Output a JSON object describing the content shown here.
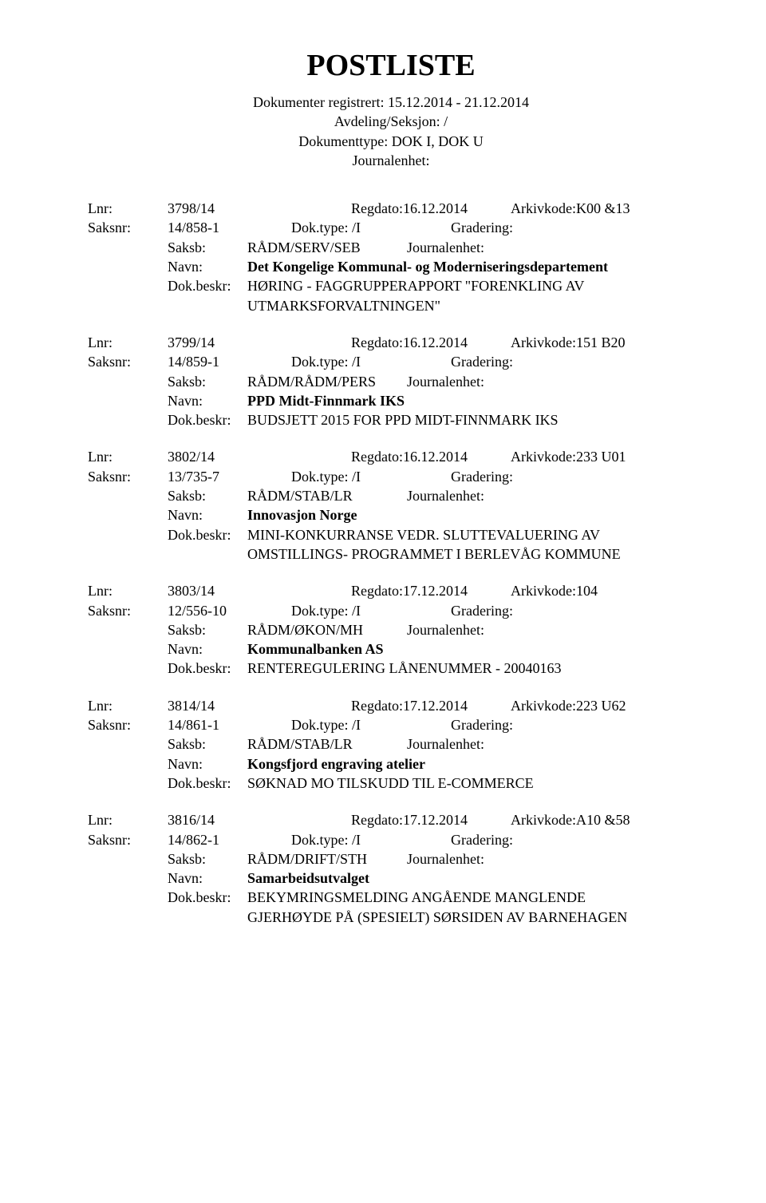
{
  "title": "POSTLISTE",
  "header": {
    "line1": "Dokumenter registrert: 15.12.2014 - 21.12.2014",
    "line2": "Avdeling/Seksjon: /",
    "line3": "Dokumenttype: DOK I, DOK U",
    "line4": "Journalenhet:"
  },
  "labels": {
    "lnr": "Lnr:",
    "regdato": "Regdato:",
    "arkivkode": "Arkivkode:",
    "saksnr": "Saksnr:",
    "doktype": "Dok.type:",
    "gradering": "Gradering:",
    "saksb": "Saksb:",
    "journalenhet": "Journalenhet:",
    "navn": "Navn:",
    "dokbeskr": "Dok.beskr:"
  },
  "entries": [
    {
      "lnr": "3798/14",
      "regdato": "16.12.2014",
      "arkivkode": "K00 &13",
      "saksnr": "14/858-1",
      "doktype": "/I",
      "gradering": "",
      "saksb": "RÅDM/SERV/SEB",
      "journalenhet": "",
      "navn": "Det Kongelige Kommunal- og Moderniseringsdepartement",
      "dokbeskr": "HØRING - FAGGRUPPERAPPORT \"FORENKLING AV\nUTMARKSFORVALTNINGEN\""
    },
    {
      "lnr": "3799/14",
      "regdato": "16.12.2014",
      "arkivkode": "151 B20",
      "saksnr": "14/859-1",
      "doktype": "/I",
      "gradering": "",
      "saksb": "RÅDM/RÅDM/PERS",
      "journalenhet": "",
      "navn": "PPD Midt-Finnmark IKS",
      "dokbeskr": "BUDSJETT 2015 FOR PPD MIDT-FINNMARK IKS"
    },
    {
      "lnr": "3802/14",
      "regdato": "16.12.2014",
      "arkivkode": "233 U01",
      "saksnr": "13/735-7",
      "doktype": "/I",
      "gradering": "",
      "saksb": "RÅDM/STAB/LR",
      "journalenhet": "",
      "navn": "Innovasjon Norge",
      "dokbeskr": "MINI-KONKURRANSE VEDR. SLUTTEVALUERING AV\nOMSTILLINGS- PROGRAMMET I BERLEVÅG KOMMUNE"
    },
    {
      "lnr": "3803/14",
      "regdato": "17.12.2014",
      "arkivkode": "104",
      "saksnr": "12/556-10",
      "doktype": "/I",
      "gradering": "",
      "saksb": "RÅDM/ØKON/MH",
      "journalenhet": "",
      "navn": "Kommunalbanken AS",
      "dokbeskr": "RENTEREGULERING LÅNENUMMER - 20040163"
    },
    {
      "lnr": "3814/14",
      "regdato": "17.12.2014",
      "arkivkode": "223 U62",
      "saksnr": "14/861-1",
      "doktype": "/I",
      "gradering": "",
      "saksb": "RÅDM/STAB/LR",
      "journalenhet": "",
      "navn": "Kongsfjord engraving atelier",
      "dokbeskr": "SØKNAD MO TILSKUDD TIL E-COMMERCE"
    },
    {
      "lnr": "3816/14",
      "regdato": "17.12.2014",
      "arkivkode": "A10 &58",
      "saksnr": "14/862-1",
      "doktype": "/I",
      "gradering": "",
      "saksb": "RÅDM/DRIFT/STH",
      "journalenhet": "",
      "navn": "Samarbeidsutvalget",
      "dokbeskr": "BEKYMRINGSMELDING ANGÅENDE MANGLENDE\nGJERHØYDE PÅ (SPESIELT) SØRSIDEN AV BARNEHAGEN"
    }
  ]
}
